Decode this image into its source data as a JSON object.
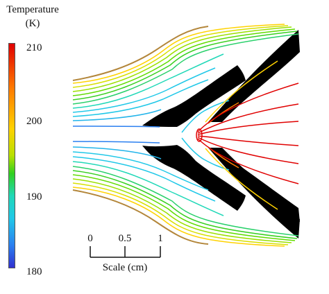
{
  "colorbar": {
    "title_line1": "Temperature",
    "title_line2": "(K)",
    "ticks": [
      "210",
      "200",
      "190",
      "180"
    ],
    "range": [
      180,
      210
    ]
  },
  "scale_bar": {
    "ticks": [
      "0",
      "0.5",
      "1"
    ],
    "label": "Scale (cm)"
  },
  "colors": {
    "cold": "#3030d0",
    "cyan": "#20c8e8",
    "green": "#30d020",
    "yellow": "#ffd200",
    "orange": "#ff7b00",
    "hot": "#e00000",
    "solid": "#000000",
    "boundary": "#b3863a"
  }
}
